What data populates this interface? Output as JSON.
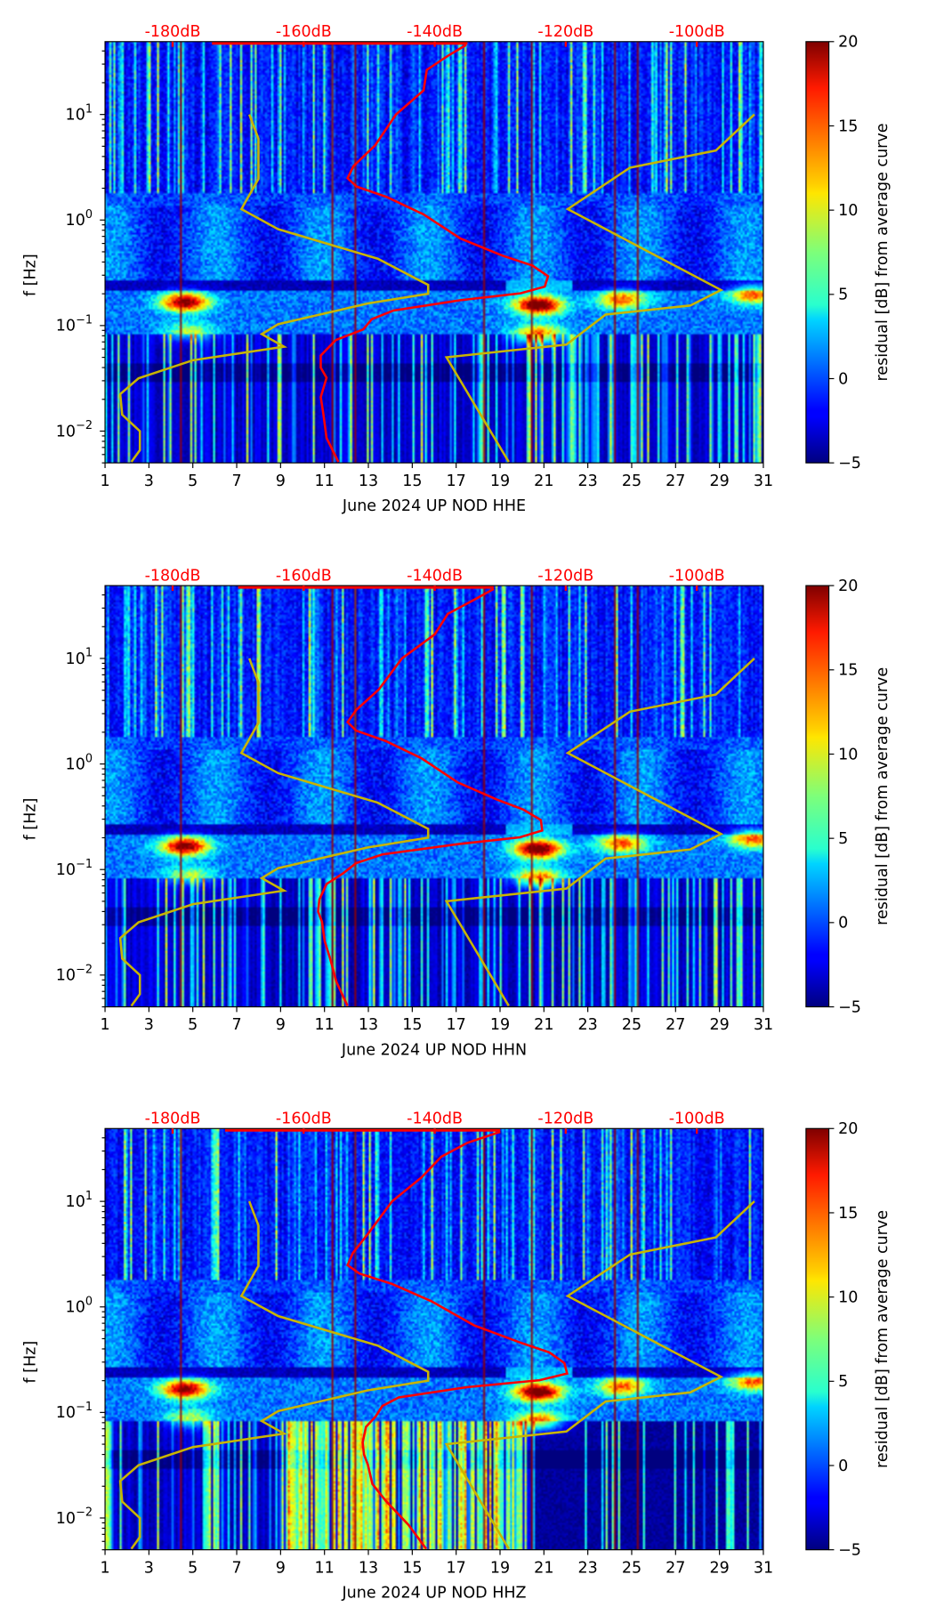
{
  "chart_data": [
    {
      "type": "heatmap",
      "xlabel": "June 2024 UP NOD  HHE",
      "ylabel": "f [Hz]",
      "colorbar_label": "residual [dB] from average curve",
      "colorbar_ticks": [
        20,
        15,
        10,
        5,
        0,
        -5
      ],
      "clim": [
        -5,
        20
      ],
      "xlim": [
        1,
        31
      ],
      "xticks": [
        1,
        3,
        5,
        7,
        9,
        11,
        13,
        15,
        17,
        19,
        21,
        23,
        25,
        27,
        29,
        31
      ],
      "ylim_hz": [
        0.005,
        49
      ],
      "yticks": [
        "10^1",
        "10^0",
        "10^-1",
        "10^-2"
      ],
      "top_axis_labels": [
        "-180dB",
        "-160dB",
        "-140dB",
        "-120dB",
        "-100dB"
      ],
      "top_axis_values_db": [
        -180,
        -160,
        -140,
        -120,
        -100
      ],
      "top_line_db": [
        -174,
        -135
      ],
      "average_curve": {
        "f_hz": [
          45.6,
          35.9,
          26.5,
          16.9,
          10,
          5.1,
          3.24,
          2.49,
          2.07,
          1.65,
          1.13,
          0.67,
          0.46,
          0.37,
          0.294,
          0.234,
          0.202,
          0.174,
          0.139,
          0.115,
          0.092,
          0.073,
          0.052,
          0.04,
          0.032,
          0.021,
          0.0146,
          0.0086,
          0.0051
        ],
        "db": [
          -135.2,
          -138,
          -141.2,
          -141.7,
          -145.9,
          -149.1,
          -152.4,
          -153.3,
          -151.9,
          -147.3,
          -141.7,
          -136.1,
          -129.7,
          -125.1,
          -122.7,
          -123.2,
          -126.9,
          -136.1,
          -146.3,
          -149.6,
          -150.9,
          -155.1,
          -157.4,
          -157.4,
          -156.5,
          -157.4,
          -157,
          -156.5,
          -154.7
        ]
      },
      "low_noise_model": {
        "f_hz": [
          10,
          5.9,
          2.45,
          1.27,
          0.82,
          0.43,
          0.243,
          0.2,
          0.162,
          0.103,
          0.083,
          0.063,
          0.047,
          0.0316,
          0.0224,
          0.0143,
          0.01,
          0.0066,
          0.0051
        ],
        "db": [
          -168.3,
          -166.9,
          -166.9,
          -169.5,
          -163.9,
          -148.7,
          -141,
          -141,
          -150.2,
          -163.9,
          -166.4,
          -163,
          -176.9,
          -185.2,
          -188,
          -187.7,
          -185,
          -185,
          -186.3
        ]
      },
      "high_noise_model": {
        "f_hz": [
          10,
          4.55,
          3.13,
          1.27,
          0.217,
          0.155,
          0.127,
          0.066,
          0.05,
          0.0051
        ],
        "db": [
          -91.2,
          -97.1,
          -110.2,
          -119.7,
          -96.3,
          -101,
          -113.9,
          -119.9,
          -138.2,
          -128.7
        ]
      }
    },
    {
      "type": "heatmap",
      "xlabel": "June 2024 UP NOD  HHN",
      "ylabel": "f [Hz]",
      "colorbar_label": "residual [dB] from average curve",
      "colorbar_ticks": [
        20,
        15,
        10,
        5,
        0,
        -5
      ],
      "clim": [
        -5,
        20
      ],
      "xlim": [
        1,
        31
      ],
      "xticks": [
        1,
        3,
        5,
        7,
        9,
        11,
        13,
        15,
        17,
        19,
        21,
        23,
        25,
        27,
        29,
        31
      ],
      "ylim_hz": [
        0.005,
        49
      ],
      "yticks": [
        "10^1",
        "10^0",
        "10^-1",
        "10^-2"
      ],
      "top_axis_labels": [
        "-180dB",
        "-160dB",
        "-140dB",
        "-120dB",
        "-100dB"
      ],
      "top_axis_values_db": [
        -180,
        -160,
        -140,
        -120,
        -100
      ],
      "top_line_db": [
        -170,
        -131
      ],
      "average_curve": {
        "f_hz": [
          45.6,
          35.9,
          26.5,
          16.9,
          10,
          5.1,
          3.24,
          2.49,
          2.07,
          1.65,
          1.13,
          0.67,
          0.46,
          0.37,
          0.294,
          0.234,
          0.202,
          0.174,
          0.139,
          0.115,
          0.092,
          0.073,
          0.052,
          0.04,
          0.032,
          0.021,
          0.0146,
          0.0086,
          0.0051
        ],
        "db": [
          -131,
          -134,
          -138,
          -140,
          -145,
          -148.5,
          -152,
          -153.3,
          -152,
          -147.5,
          -142,
          -136.5,
          -130.5,
          -126.5,
          -123.8,
          -123.6,
          -127,
          -136.5,
          -148,
          -152,
          -154,
          -156.5,
          -157.6,
          -157.8,
          -157.2,
          -156.8,
          -156,
          -155,
          -153.3
        ]
      },
      "low_noise_model": {
        "f_hz": [
          10,
          5.9,
          2.45,
          1.27,
          0.82,
          0.43,
          0.243,
          0.2,
          0.162,
          0.103,
          0.083,
          0.063,
          0.047,
          0.0316,
          0.0224,
          0.0143,
          0.01,
          0.0066,
          0.0051
        ],
        "db": [
          -168.3,
          -166.9,
          -166.9,
          -169.5,
          -163.9,
          -148.7,
          -141,
          -141,
          -150.2,
          -163.9,
          -166.4,
          -163,
          -176.9,
          -185.2,
          -188,
          -187.7,
          -185,
          -185,
          -186.3
        ]
      },
      "high_noise_model": {
        "f_hz": [
          10,
          4.55,
          3.13,
          1.27,
          0.217,
          0.155,
          0.127,
          0.066,
          0.05,
          0.0051
        ],
        "db": [
          -91.2,
          -97.1,
          -110.2,
          -119.7,
          -96.3,
          -101,
          -113.9,
          -119.9,
          -138.2,
          -128.7
        ]
      }
    },
    {
      "type": "heatmap",
      "xlabel": "June 2024 UP NOD  HHZ",
      "ylabel": "f [Hz]",
      "colorbar_label": "residual [dB] from average curve",
      "colorbar_ticks": [
        20,
        15,
        10,
        5,
        0,
        -5
      ],
      "clim": [
        -5,
        20
      ],
      "xlim": [
        1,
        31
      ],
      "xticks": [
        1,
        3,
        5,
        7,
        9,
        11,
        13,
        15,
        17,
        19,
        21,
        23,
        25,
        27,
        29,
        31
      ],
      "ylim_hz": [
        0.005,
        49
      ],
      "yticks": [
        "10^1",
        "10^0",
        "10^-1",
        "10^-2"
      ],
      "top_axis_labels": [
        "-180dB",
        "-160dB",
        "-140dB",
        "-120dB",
        "-100dB"
      ],
      "top_axis_values_db": [
        -180,
        -160,
        -140,
        -120,
        -100
      ],
      "top_line_db": [
        -172,
        -130
      ],
      "average_curve": {
        "f_hz": [
          45.6,
          35.9,
          26.5,
          16.9,
          10,
          5.1,
          3.24,
          2.49,
          2.07,
          1.65,
          1.13,
          0.67,
          0.46,
          0.37,
          0.294,
          0.234,
          0.202,
          0.174,
          0.139,
          0.115,
          0.092,
          0.073,
          0.052,
          0.04,
          0.032,
          0.021,
          0.0146,
          0.0086,
          0.0051
        ],
        "db": [
          -130,
          -135,
          -139,
          -142,
          -146.5,
          -150,
          -152.5,
          -153.3,
          -151.5,
          -146.5,
          -140.5,
          -134,
          -127,
          -122.5,
          -120.2,
          -119.8,
          -124,
          -135,
          -145.5,
          -148,
          -149,
          -150.5,
          -151,
          -150.8,
          -150.2,
          -149.5,
          -147.5,
          -144,
          -141.3
        ]
      },
      "low_noise_model": {
        "f_hz": [
          10,
          5.9,
          2.45,
          1.27,
          0.82,
          0.43,
          0.243,
          0.2,
          0.162,
          0.103,
          0.083,
          0.063,
          0.047,
          0.0316,
          0.0224,
          0.0143,
          0.01,
          0.0066,
          0.0051
        ],
        "db": [
          -168.3,
          -166.9,
          -166.9,
          -169.5,
          -163.9,
          -148.7,
          -141,
          -141,
          -150.2,
          -163.9,
          -166.4,
          -163,
          -176.9,
          -185.2,
          -188,
          -187.7,
          -185,
          -185,
          -186.3
        ]
      },
      "high_noise_model": {
        "f_hz": [
          10,
          4.55,
          3.13,
          1.27,
          0.217,
          0.155,
          0.127,
          0.066,
          0.05,
          0.0051
        ],
        "db": [
          -91.2,
          -97.1,
          -110.2,
          -119.7,
          -96.3,
          -101,
          -113.9,
          -119.9,
          -138.2,
          -128.7
        ]
      }
    }
  ],
  "colors": {
    "average_curve": "#ff0000",
    "noise_models": "#c8b400",
    "top_labels": "#ff0000"
  }
}
